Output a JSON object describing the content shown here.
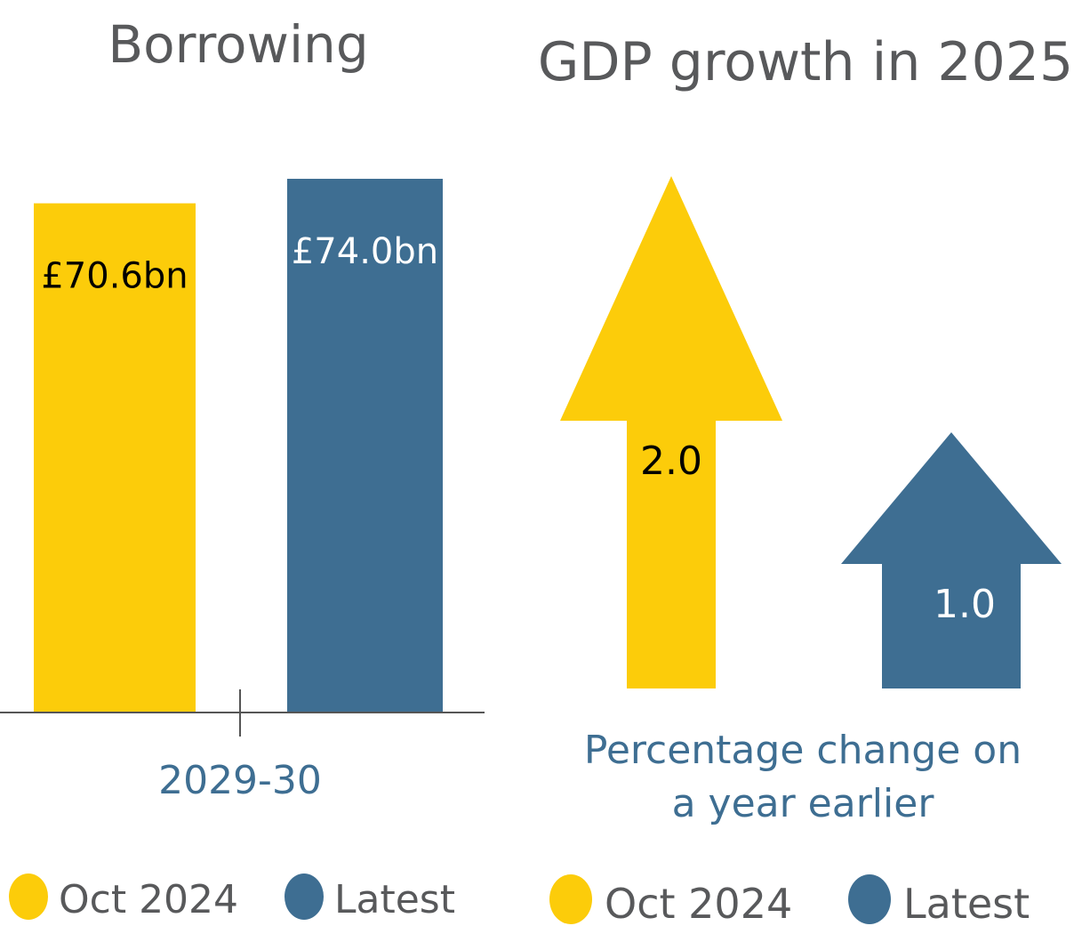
{
  "colors": {
    "oct_2024": "#fccc0a",
    "latest": "#3e6e92",
    "title": "#58595b",
    "axis": "#555555",
    "text_dark": "#000000",
    "text_light": "#ffffff",
    "caption": "#3e6e92",
    "legend_text": "#58595b"
  },
  "chart_data": [
    {
      "type": "bar",
      "title": "Borrowing",
      "categories": [
        "2029-30"
      ],
      "series": [
        {
          "name": "Oct 2024",
          "values": [
            70.6
          ],
          "label": "£70.6bn",
          "color": "#fccc0a"
        },
        {
          "name": "Latest",
          "values": [
            74.0
          ],
          "label": "£74.0bn",
          "color": "#3e6e92"
        }
      ],
      "ylim": [
        0,
        80
      ],
      "grid": false,
      "legend": {
        "placement": "bottom",
        "items": [
          "Oct 2024",
          "Latest"
        ]
      }
    },
    {
      "type": "bar",
      "title": "GDP growth in 2025",
      "caption_line1": "Percentage change on",
      "caption_line2": "a year earlier",
      "series": [
        {
          "name": "Oct 2024",
          "values": [
            2.0
          ],
          "label": "2.0",
          "color": "#fccc0a"
        },
        {
          "name": "Latest",
          "values": [
            1.0
          ],
          "label": "1.0",
          "color": "#3e6e92"
        }
      ],
      "mark": "arrow",
      "ylim": [
        0,
        2.2
      ],
      "grid": false,
      "legend": {
        "placement": "bottom",
        "items": [
          "Oct 2024",
          "Latest"
        ]
      }
    }
  ]
}
